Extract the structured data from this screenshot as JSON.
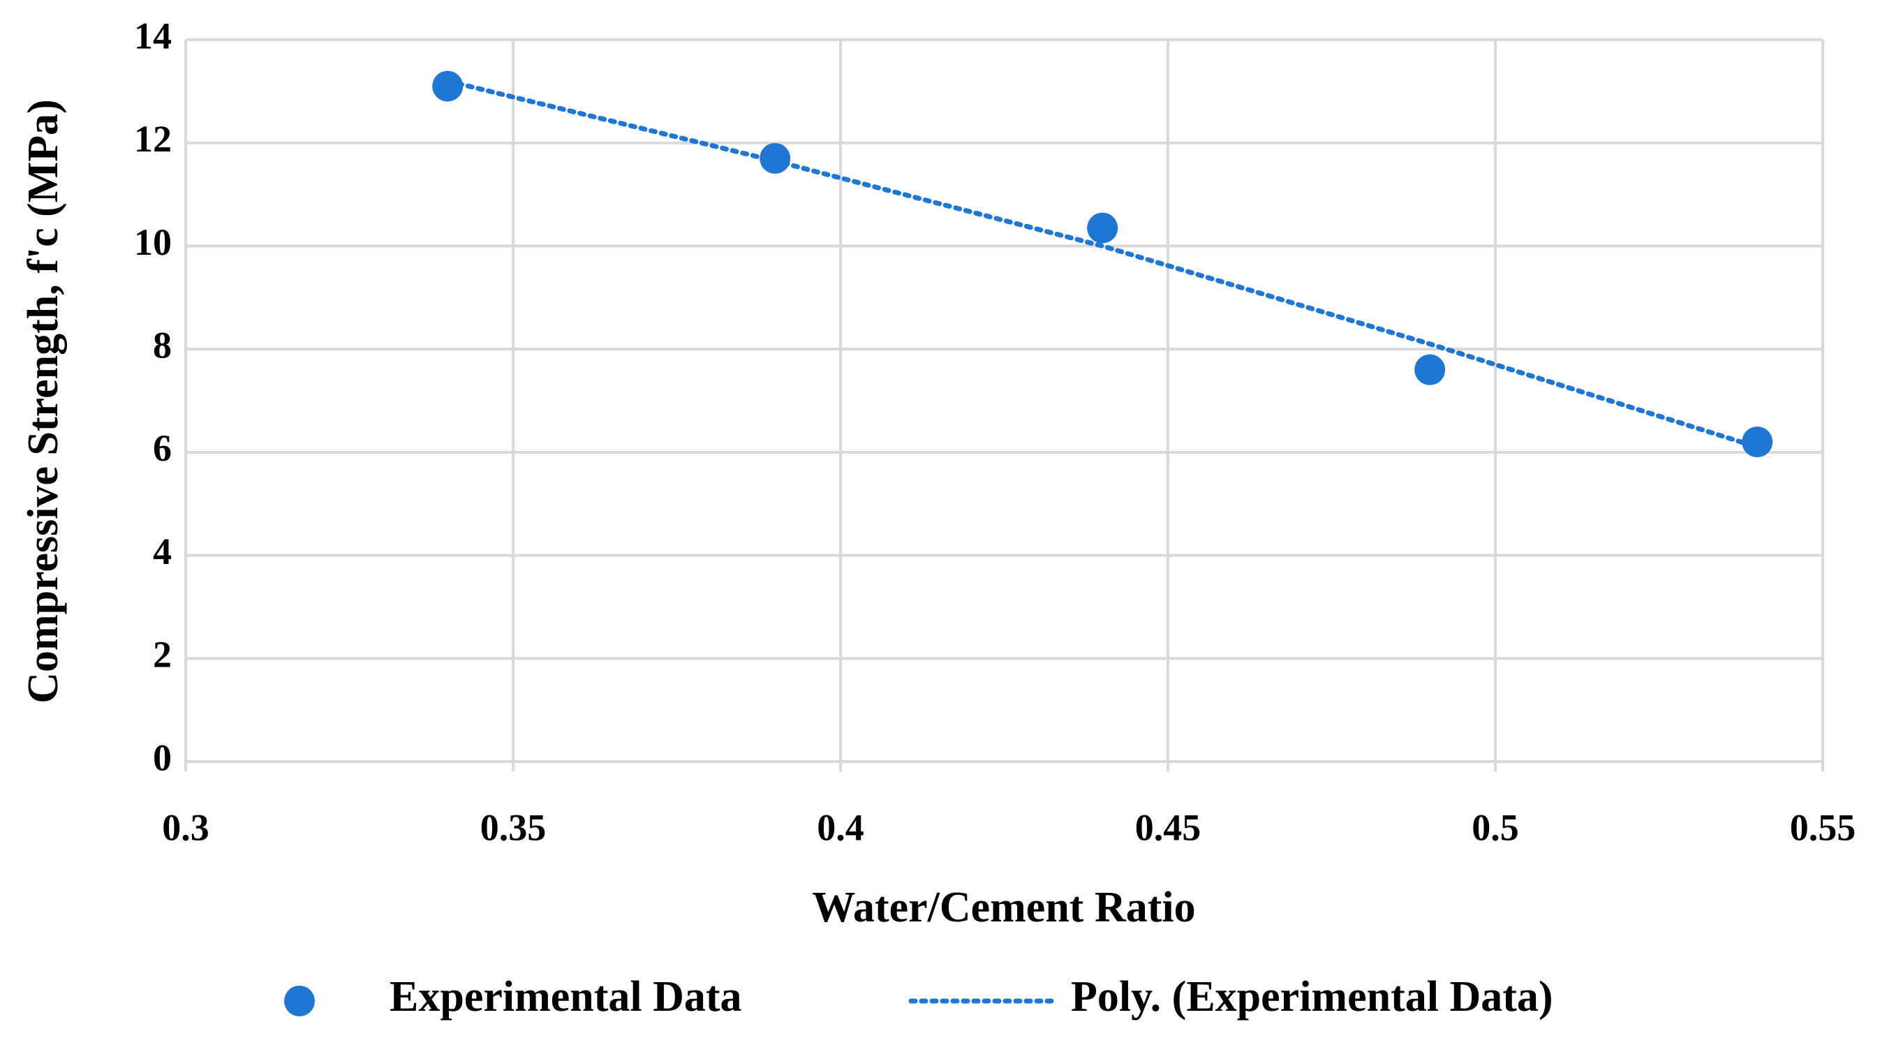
{
  "chart_data": {
    "type": "scatter",
    "x_label": "Water/Cement Ratio",
    "y_label": "Compressive Strength, f'c (MPa)",
    "xlim": [
      0.3,
      0.55
    ],
    "xticks": [
      0.3,
      0.35,
      0.4,
      0.45,
      0.5,
      0.55
    ],
    "ylim": [
      0,
      14
    ],
    "yticks": [
      0,
      2,
      4,
      6,
      8,
      10,
      12,
      14
    ],
    "grid": true,
    "legend": "bottom",
    "series": [
      {
        "name": "Experimental Data",
        "color": "#1f77d2",
        "mode": "markers",
        "x": [
          0.34,
          0.39,
          0.44,
          0.49,
          0.54
        ],
        "values": [
          13.1,
          11.7,
          10.35,
          7.6,
          6.2
        ]
      },
      {
        "name": "Poly. (Experimental Data)",
        "color": "#1f77d2",
        "mode": "dotted-line",
        "x": [
          0.34,
          0.39,
          0.44,
          0.49,
          0.54
        ],
        "values": [
          13.2,
          11.65,
          10.0,
          8.1,
          6.1
        ]
      }
    ]
  }
}
